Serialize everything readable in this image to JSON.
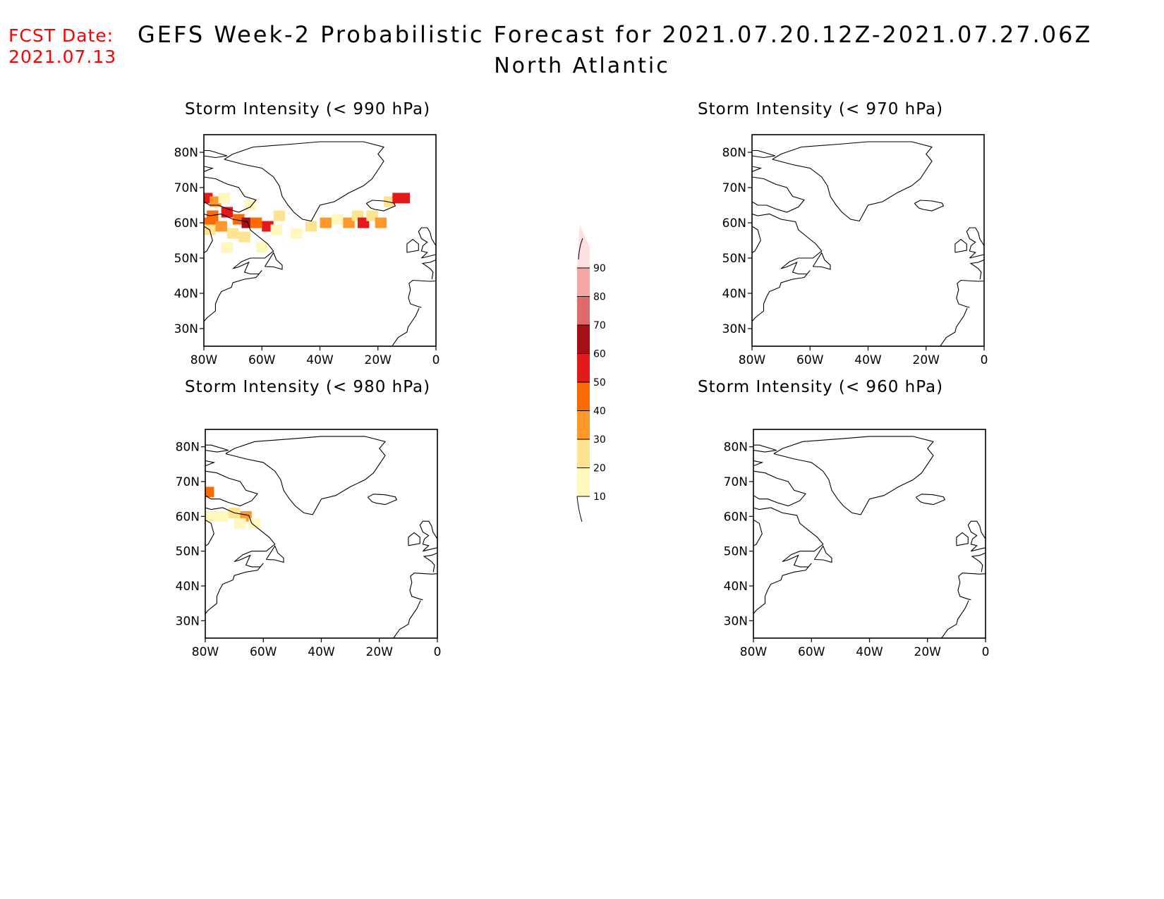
{
  "header": {
    "fcst_label": "FCST Date:",
    "fcst_date": "2021.07.13",
    "title": "GEFS Week-2 Probabilistic Forecast for 2021.07.20.12Z-2021.07.27.06Z",
    "subtitle": "North Atlantic"
  },
  "colors": {
    "fcst_text": "#ff0000",
    "levels": [
      "#fff7bc",
      "#fee391",
      "#fe9929",
      "#fd6a02",
      "#e31a1c",
      "#a50f15",
      "#de6a6a",
      "#f4a6a6",
      "#fde0e0"
    ]
  },
  "colorbar": {
    "ticks": [
      "10",
      "20",
      "30",
      "40",
      "50",
      "60",
      "70",
      "80",
      "90"
    ]
  },
  "axes": {
    "lat_labels": [
      "80N",
      "70N",
      "60N",
      "50N",
      "40N",
      "30N"
    ],
    "lon_labels": [
      "80W",
      "60W",
      "40W",
      "20W",
      "0"
    ],
    "lat_values": [
      80,
      70,
      60,
      50,
      40,
      30
    ],
    "lon_values": [
      -80,
      -60,
      -40,
      -20,
      0
    ],
    "lat_range": [
      25,
      85
    ],
    "lon_range": [
      -80,
      0
    ]
  },
  "panels": [
    {
      "title": "Storm Intensity (< 990 hPa)",
      "cells": [
        {
          "lon": -79,
          "lat": 67,
          "p": 55
        },
        {
          "lon": -76,
          "lat": 66,
          "p": 30
        },
        {
          "lon": -77,
          "lat": 62,
          "p": 40
        },
        {
          "lon": -72,
          "lat": 63,
          "p": 55
        },
        {
          "lon": -68,
          "lat": 61,
          "p": 45
        },
        {
          "lon": -65,
          "lat": 60,
          "p": 60
        },
        {
          "lon": -62,
          "lat": 60,
          "p": 40
        },
        {
          "lon": -58,
          "lat": 59,
          "p": 55
        },
        {
          "lon": -78,
          "lat": 60,
          "p": 45
        },
        {
          "lon": -74,
          "lat": 59,
          "p": 35
        },
        {
          "lon": -70,
          "lat": 57,
          "p": 25
        },
        {
          "lon": -66,
          "lat": 56,
          "p": 25
        },
        {
          "lon": -60,
          "lat": 53,
          "p": 15
        },
        {
          "lon": -55,
          "lat": 58,
          "p": 12
        },
        {
          "lon": -72,
          "lat": 53,
          "p": 15
        },
        {
          "lon": -64,
          "lat": 65,
          "p": 15
        },
        {
          "lon": -73,
          "lat": 67,
          "p": 12
        },
        {
          "lon": -78,
          "lat": 58,
          "p": 20
        },
        {
          "lon": -54,
          "lat": 62,
          "p": 20
        },
        {
          "lon": -48,
          "lat": 57,
          "p": 10
        },
        {
          "lon": -43,
          "lat": 59,
          "p": 20
        },
        {
          "lon": -38,
          "lat": 60,
          "p": 30
        },
        {
          "lon": -34,
          "lat": 61,
          "p": 15
        },
        {
          "lon": -30,
          "lat": 60,
          "p": 35
        },
        {
          "lon": -27,
          "lat": 62,
          "p": 20
        },
        {
          "lon": -25,
          "lat": 60,
          "p": 55
        },
        {
          "lon": -22,
          "lat": 62,
          "p": 20
        },
        {
          "lon": -19,
          "lat": 60,
          "p": 30
        },
        {
          "lon": -16,
          "lat": 66,
          "p": 20
        },
        {
          "lon": -13,
          "lat": 67,
          "p": 55
        },
        {
          "lon": -11,
          "lat": 67,
          "p": 55
        }
      ]
    },
    {
      "title": "Storm Intensity (< 970 hPa)",
      "cells": []
    },
    {
      "title": "Storm Intensity (< 980 hPa)",
      "cells": [
        {
          "lon": -79,
          "lat": 67,
          "p": 45
        },
        {
          "lon": -78,
          "lat": 60,
          "p": 10
        },
        {
          "lon": -74,
          "lat": 60,
          "p": 10
        },
        {
          "lon": -70,
          "lat": 61,
          "p": 20
        },
        {
          "lon": -66,
          "lat": 60,
          "p": 35
        },
        {
          "lon": -63,
          "lat": 58,
          "p": 12
        },
        {
          "lon": -68,
          "lat": 58,
          "p": 12
        }
      ]
    },
    {
      "title": "Storm Intensity (< 960 hPa)",
      "cells": []
    }
  ]
}
